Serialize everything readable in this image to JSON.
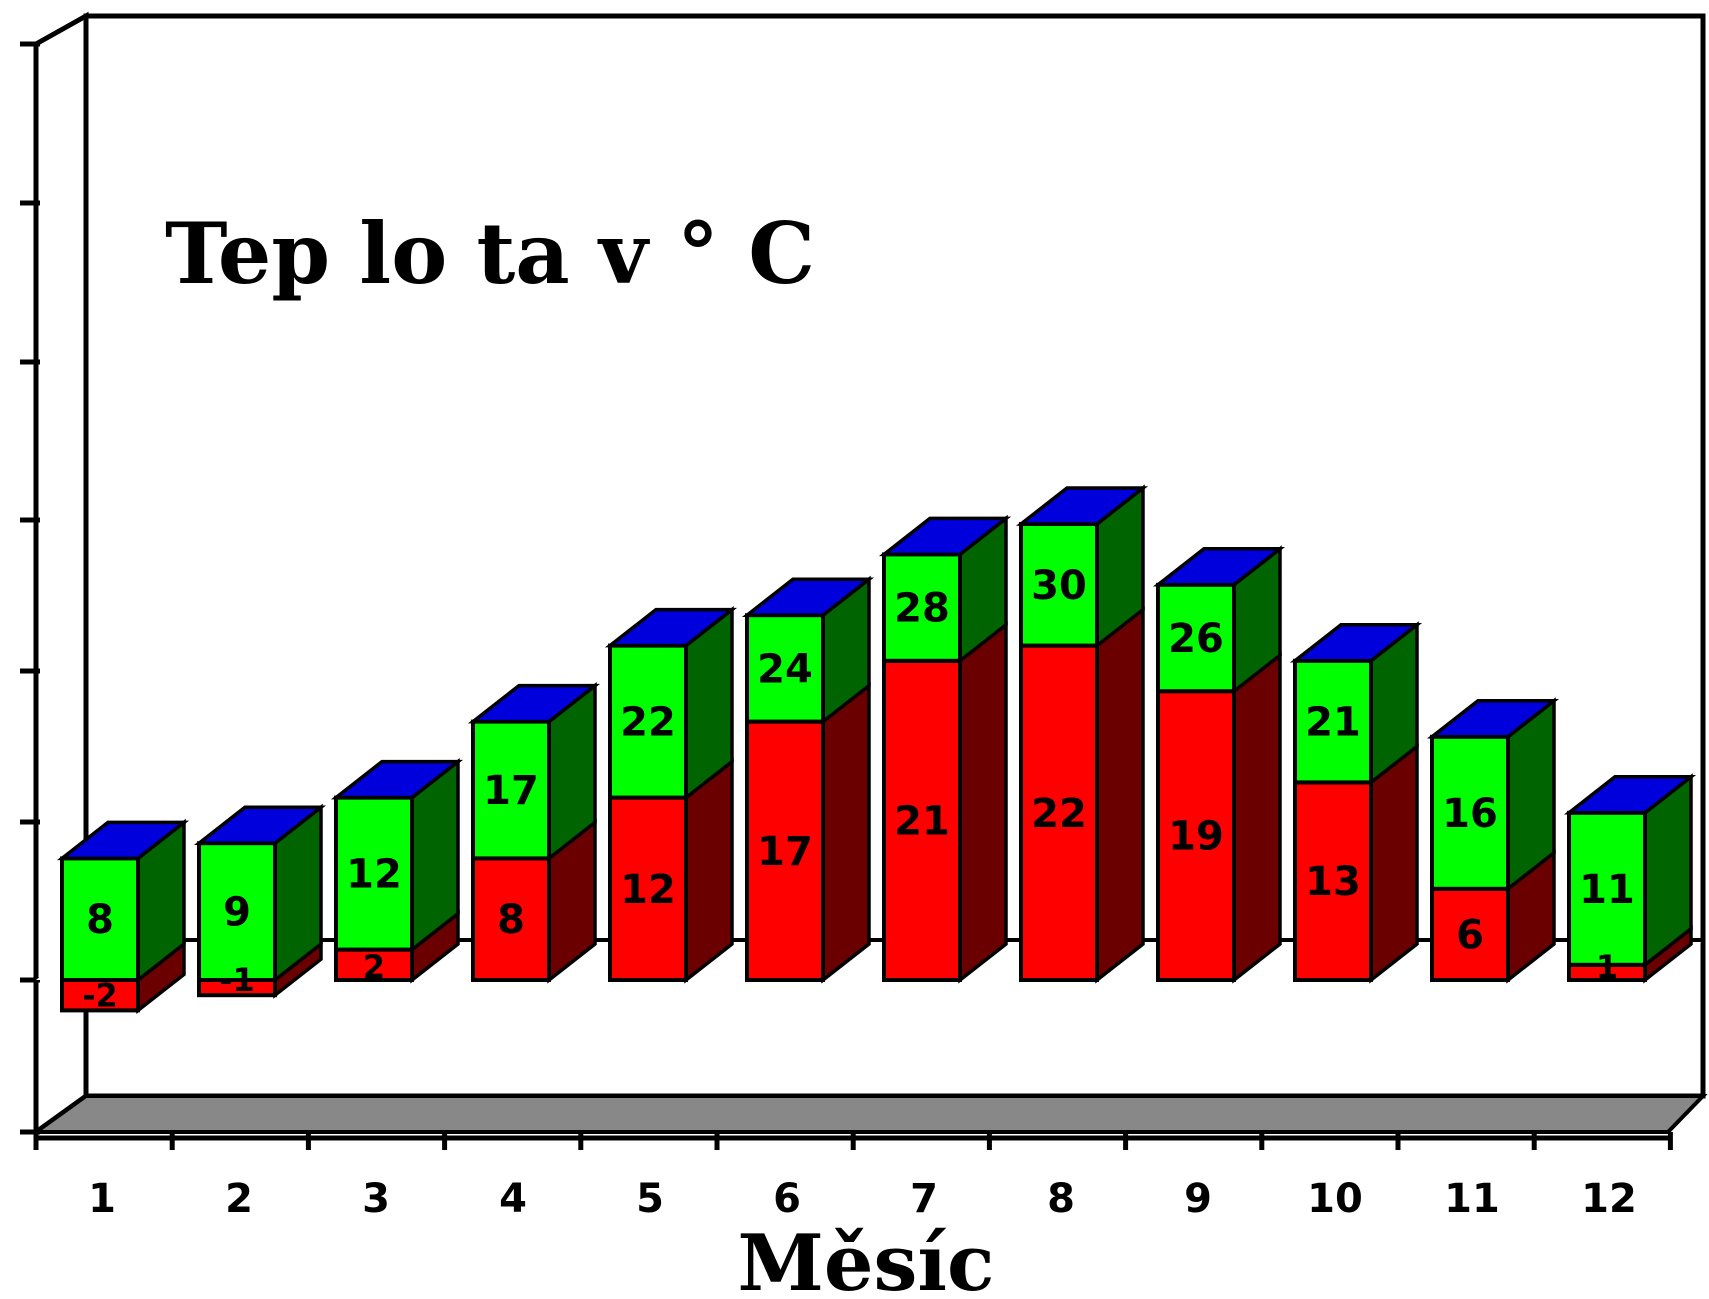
{
  "chart_data": {
    "type": "bar",
    "title": "Tep lo ta v ° C",
    "xlabel": "Měsíc",
    "ylabel": "",
    "categories": [
      "1",
      "2",
      "3",
      "4",
      "5",
      "6",
      "7",
      "8",
      "9",
      "10",
      "11",
      "12"
    ],
    "series": [
      {
        "name": "",
        "values": [
          -2,
          -1,
          2,
          8,
          12,
          17,
          21,
          22,
          19,
          13,
          6,
          1
        ],
        "color": "#ff0000",
        "side_color": "#6b0000"
      },
      {
        "name": "",
        "values": [
          8,
          9,
          12,
          17,
          22,
          24,
          28,
          30,
          26,
          21,
          16,
          11
        ],
        "color": "#00ff00",
        "side_color": "#006400",
        "top_color": "#0000dd"
      }
    ],
    "ylim": [
      -10,
      60
    ],
    "grid": false,
    "legend": "none",
    "background": "#ffffff",
    "floor_color": "#888888"
  }
}
